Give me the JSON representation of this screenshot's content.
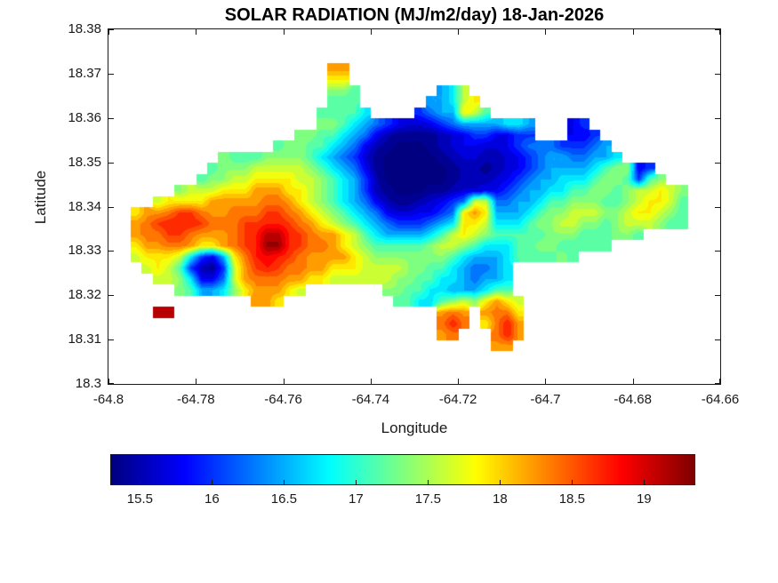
{
  "title": "SOLAR RADIATION (MJ/m2/day) 18-Jan-2026",
  "chart_data": {
    "type": "heatmap",
    "subtype": "filled-contour-map",
    "title": "SOLAR RADIATION (MJ/m2/day) 18-Jan-2026",
    "variable": "Solar radiation",
    "units": "MJ/m2/day",
    "date": "18-Jan-2026",
    "xlabel": "Longitude",
    "ylabel": "Latitude",
    "xlim": [
      -64.8,
      -64.66
    ],
    "ylim": [
      18.3,
      18.38
    ],
    "x_ticks": {
      "values": [
        -64.8,
        -64.78,
        -64.76,
        -64.74,
        -64.72,
        -64.7,
        -64.68,
        -64.66
      ],
      "labels": [
        "-64.8",
        "-64.78",
        "-64.76",
        "-64.74",
        "-64.72",
        "-64.7",
        "-64.68",
        "-64.66"
      ]
    },
    "y_ticks": {
      "values": [
        18.3,
        18.31,
        18.32,
        18.33,
        18.34,
        18.35,
        18.36,
        18.37,
        18.38
      ],
      "labels": [
        "18.3",
        "18.31",
        "18.32",
        "18.33",
        "18.34",
        "18.35",
        "18.36",
        "18.37",
        "18.38"
      ]
    },
    "colorbar": {
      "orientation": "horizontal",
      "colormap": "jet",
      "min": 15.3,
      "max": 19.35,
      "ticks": [
        15.5,
        16,
        16.5,
        17,
        17.5,
        18,
        18.5,
        19
      ],
      "labels": [
        "15.5",
        "16",
        "16.5",
        "17",
        "17.5",
        "18",
        "18.5",
        "19"
      ]
    },
    "contour_step": 0.15,
    "grid": {
      "comment": "Gridded solar-radiation field over the island; row 0 = north (lat 18.38), last row = south (lat 18.3); col 0 = west (lon -64.8).",
      "cols": 56,
      "rows": 32,
      "encoding": "each char: '.' = no data (sea/white); base-36 char c ('0'-'z') = value MJ/m2/day = 15 + c*0.125",
      "values": [
        "........................................................",
        "........................................................",
        "........................................................",
        "....................qq..................................",
        "....................nn..................................",
        "....................jjh.......cel.......................",
        "....................hhh......cceln......................",
        "...................hhhhe....8accnlh.....................",
        "...................jjheca865568acccceec...68............",
        ".................jjhheca643333456886688...668...........",
        "...............hjjhheca643222345665568aaa888ac..........",
        "..........jhhhjjjjheca85322222345544568accaacce.........",
        ".........hjjjllllljheca6322222234434568accccehjj68......",
        "........hjjllnnnnlljhec842222223444568acceeehjjh8hj.....",
        "......jlllnnnqqqnnljhec84322233455668acceehhjjhjllnlj...",
        "....lnnnnqqqqqrrqnljheca64334568allaaccehhjjjhhjlnnlh...",
        "..nqqrttrqqrrrttrqnljheca655668anqncccehjjllljjlnnljh...",
        "..qrtuuutrrrttuutrqnljheca888acennleeehjjlljjhjllljhh...",
        "..qrrttrqqqrtuxxutrqqnlheccccehlnljhhhhhjjjhhhjjh.......",
        "..nqqrrqnnqrtuyyutrrqnljhhhhhjlljheeehhjjhhhhh..........",
        "..lnnnle86cnruvutrqqqqnljjjjjjjhecccehhhhjh.............",
        "...lnlh8438lqtutrrqqnnnlllljjhhecaace...................",
        "....llje66alqrrrqqnnlllllljjhheecacce...................",
        "......jhccejnqqqnl.......jjhheecccehh...................",
        ".............qqn..........hheehjljnqnl..................",
        "....xx........................qrq.qrrn..................",
        "..............................rur.nruq..................",
        "..............................qr...ruq..................",
        "...................................qq...................",
        "........................................................",
        "........................................................",
        "........................................................"
      ]
    }
  }
}
